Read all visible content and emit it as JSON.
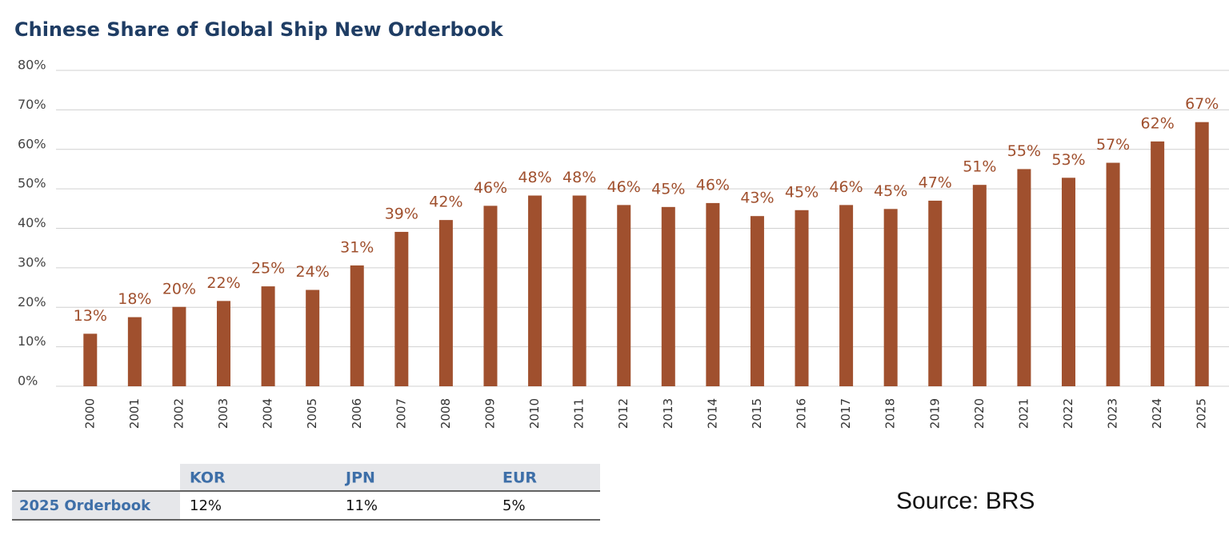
{
  "chart_data": {
    "type": "bar",
    "title": "Chinese Share of Global Ship New Orderbook",
    "categories": [
      "2000",
      "2001",
      "2002",
      "2003",
      "2004",
      "2005",
      "2006",
      "2007",
      "2008",
      "2009",
      "2010",
      "2011",
      "2012",
      "2013",
      "2014",
      "2015",
      "2016",
      "2017",
      "2018",
      "2019",
      "2020",
      "2021",
      "2022",
      "2023",
      "2024",
      "2025"
    ],
    "values": [
      13.3,
      17.5,
      20.1,
      21.6,
      25.3,
      24.4,
      30.6,
      39.1,
      42.1,
      45.7,
      48.3,
      48.3,
      45.9,
      45.4,
      46.4,
      43.1,
      44.6,
      45.9,
      44.9,
      47,
      51,
      55,
      52.8,
      56.6,
      62,
      66.9
    ],
    "value_labels": [
      "13%",
      "18%",
      "20%",
      "22%",
      "25%",
      "24%",
      "31%",
      "39%",
      "42%",
      "46%",
      "48%",
      "48%",
      "46%",
      "45%",
      "46%",
      "43%",
      "45%",
      "46%",
      "45%",
      "47%",
      "51%",
      "55%",
      "53%",
      "57%",
      "62%",
      "67%"
    ],
    "color": "#a0502e",
    "ylim": [
      0,
      80
    ],
    "yticks": [
      {
        "value": 0,
        "label": "0%"
      },
      {
        "value": 10,
        "label": "10%"
      },
      {
        "value": 20,
        "label": "20%"
      },
      {
        "value": 30,
        "label": "30%"
      },
      {
        "value": 40,
        "label": "40%"
      },
      {
        "value": 50,
        "label": "50%"
      },
      {
        "value": 60,
        "label": "60%"
      },
      {
        "value": 70,
        "label": "70%"
      },
      {
        "value": 80,
        "label": "80%"
      }
    ],
    "grid": true
  },
  "table": {
    "header": [
      "KOR",
      "JPN",
      "EUR"
    ],
    "rows": [
      [
        "2025 Orderbook",
        "12%",
        "11%",
        "5%"
      ]
    ]
  },
  "source": "Source: BRS"
}
